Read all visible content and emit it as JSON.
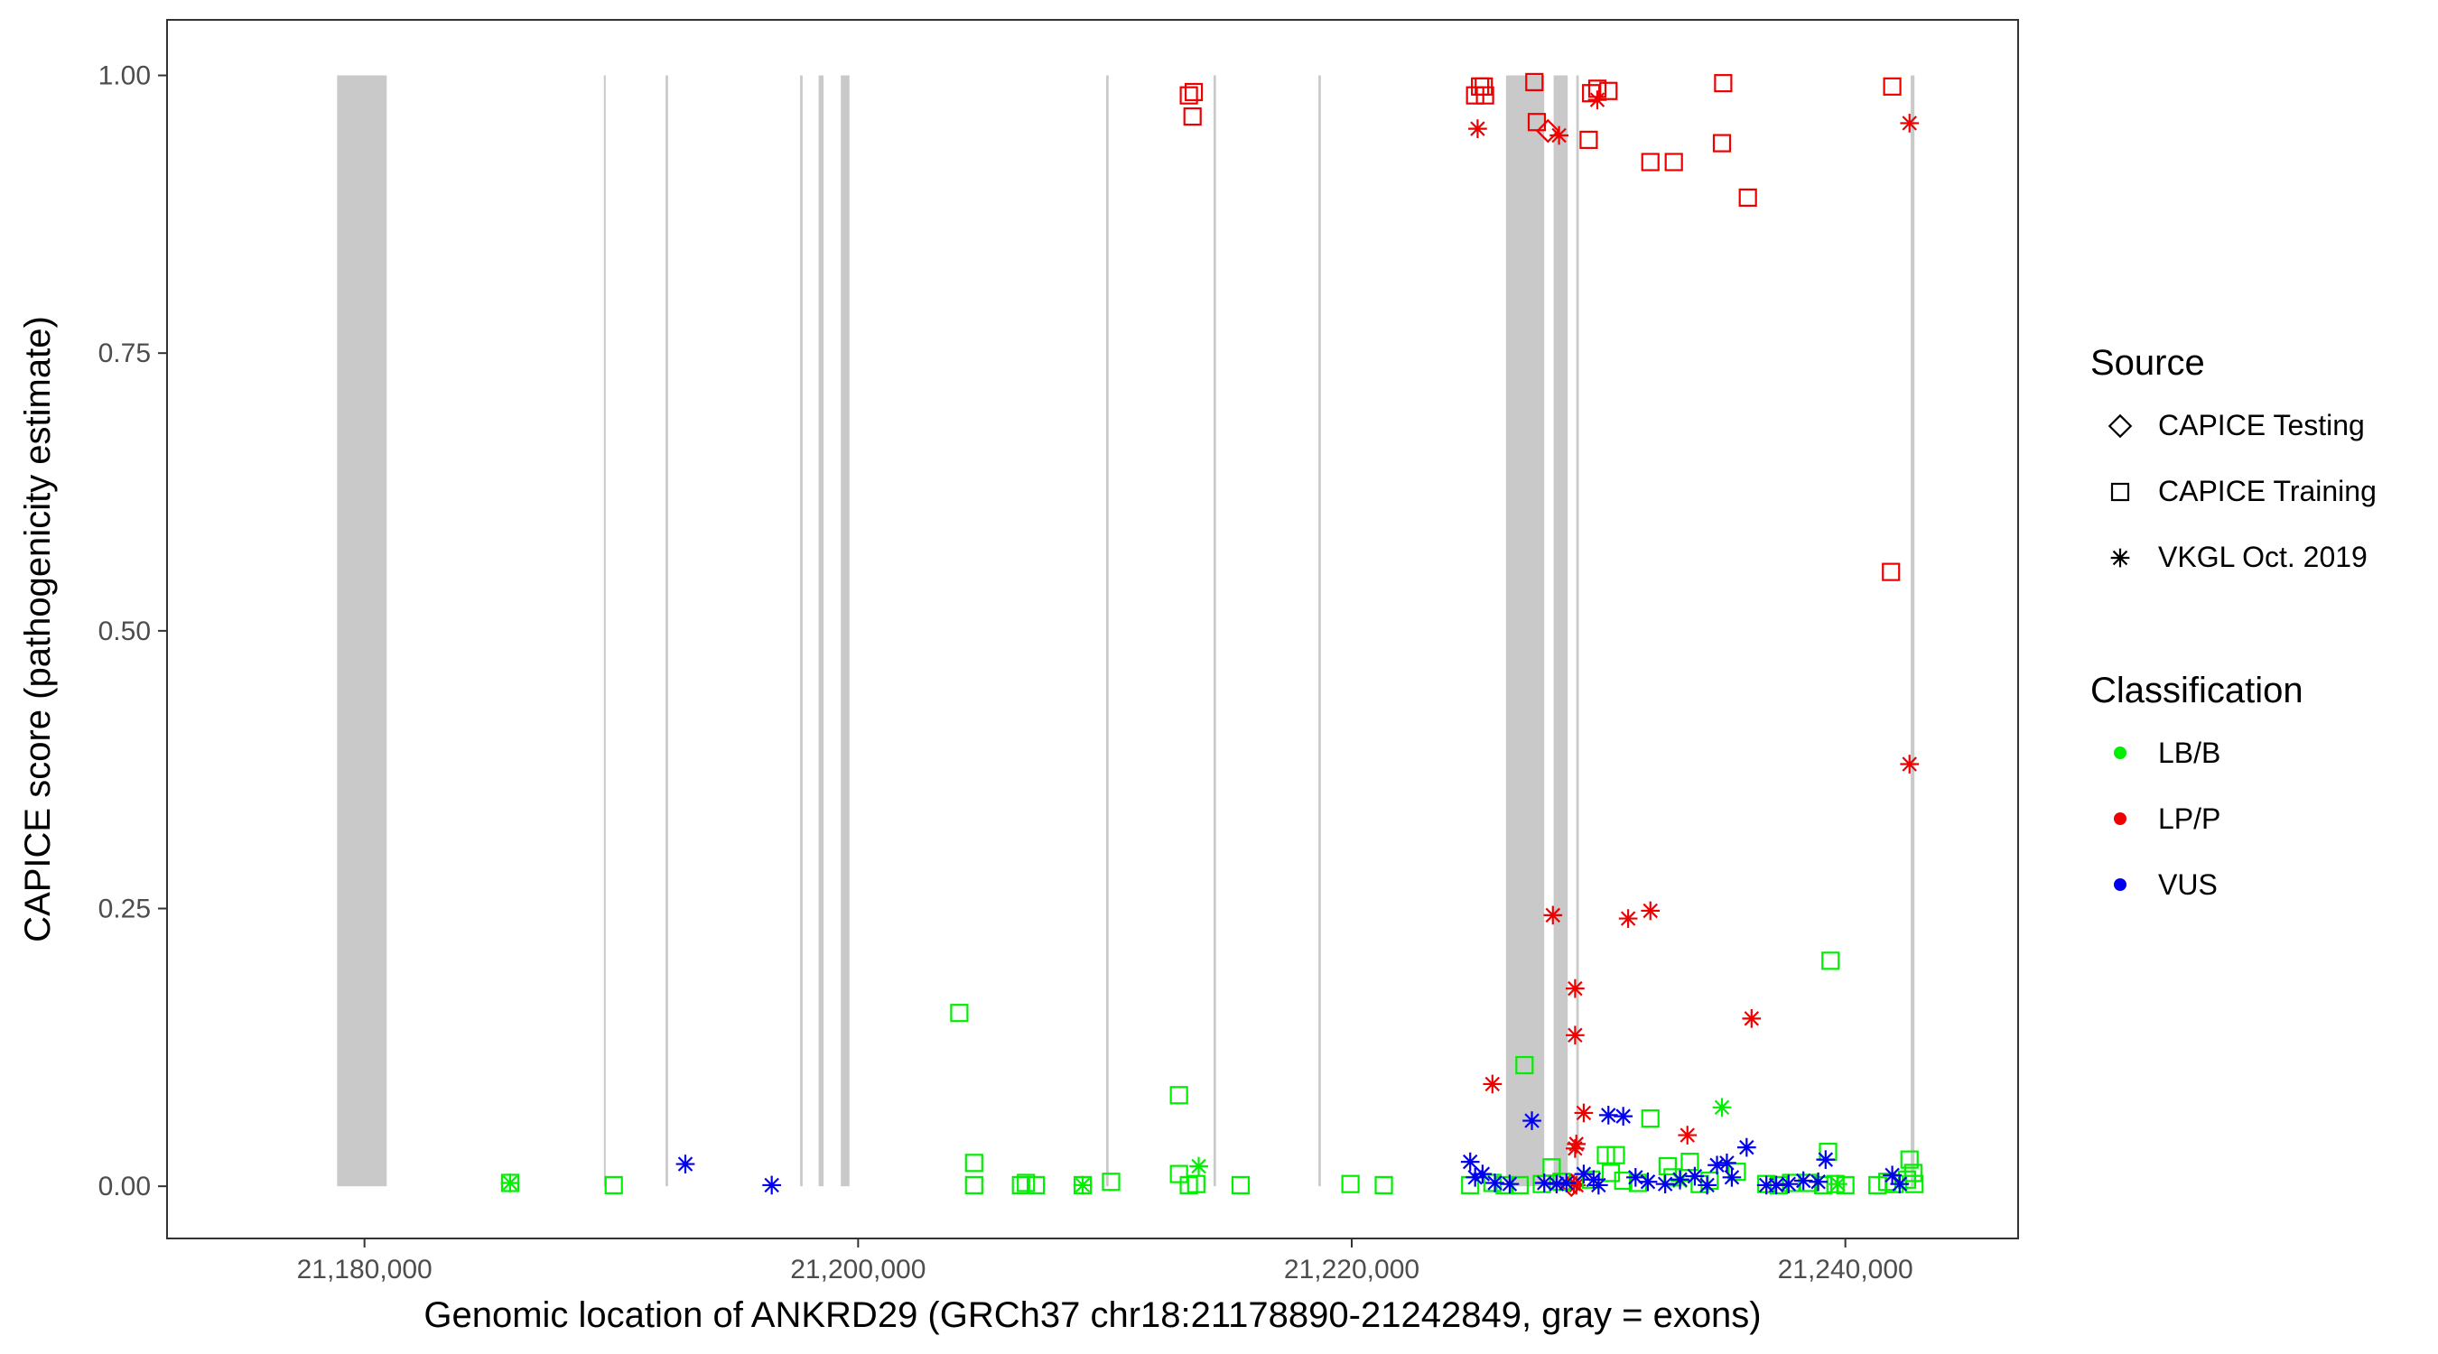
{
  "chart_data": {
    "type": "scatter",
    "xlabel": "Genomic location of ANKRD29 (GRCh37 chr18:21178890-21242849, gray = exons)",
    "ylabel": "CAPICE score (pathogenicity estimate)",
    "xlim": [
      21172000,
      21247000
    ],
    "ylim": [
      -0.047,
      1.05
    ],
    "x_ticks": [
      21180000,
      21200000,
      21220000,
      21240000
    ],
    "x_tick_labels": [
      "21,180,000",
      "21,200,000",
      "21,220,000",
      "21,240,000"
    ],
    "y_ticks": [
      0,
      0.25,
      0.5,
      0.75,
      1.0
    ],
    "y_tick_labels": [
      "0.00",
      "0.25",
      "0.50",
      "0.75",
      "1.00"
    ],
    "grid": false,
    "exons": [
      [
        21178890,
        21180900
      ],
      [
        21189700,
        21189760
      ],
      [
        21192200,
        21192300
      ],
      [
        21197650,
        21197750
      ],
      [
        21198400,
        21198600
      ],
      [
        21199300,
        21199650
      ],
      [
        21210050,
        21210150
      ],
      [
        21214400,
        21214500
      ],
      [
        21218650,
        21218750
      ],
      [
        21226250,
        21227800
      ],
      [
        21228180,
        21228750
      ],
      [
        21229100,
        21229200
      ],
      [
        21242650,
        21242800
      ]
    ],
    "legend_placement": "right",
    "legends": [
      {
        "title": "Source",
        "items": [
          {
            "label": "CAPICE Testing",
            "shape": "diamond"
          },
          {
            "label": "CAPICE Training",
            "shape": "square"
          },
          {
            "label": "VKGL Oct. 2019",
            "shape": "asterisk"
          }
        ]
      },
      {
        "title": "Classification",
        "items": [
          {
            "label": "LB/B",
            "color": "#00ee00"
          },
          {
            "label": "LP/P",
            "color": "#ee0000"
          },
          {
            "label": "VUS",
            "color": "#0000ee"
          }
        ]
      }
    ],
    "series": [
      {
        "source": "CAPICE Training",
        "classification": "LP/P",
        "color": "#ee0000",
        "shape": "square",
        "points": [
          [
            21213400,
            0.982
          ],
          [
            21213600,
            0.985
          ],
          [
            21213550,
            0.963
          ],
          [
            21225000,
            0.982
          ],
          [
            21225200,
            0.99
          ],
          [
            21225350,
            0.99
          ],
          [
            21225400,
            0.982
          ],
          [
            21227400,
            0.994
          ],
          [
            21227500,
            0.958
          ],
          [
            21229700,
            0.984
          ],
          [
            21229950,
            0.988
          ],
          [
            21230400,
            0.986
          ],
          [
            21229600,
            0.942
          ],
          [
            21232100,
            0.922
          ],
          [
            21233050,
            0.922
          ],
          [
            21235000,
            0.939
          ],
          [
            21235050,
            0.993
          ],
          [
            21236050,
            0.89
          ],
          [
            21241900,
            0.99
          ],
          [
            21241850,
            0.553
          ]
        ]
      },
      {
        "source": "VKGL Oct. 2019",
        "classification": "LP/P",
        "color": "#ee0000",
        "shape": "asterisk",
        "points": [
          [
            21225100,
            0.952
          ],
          [
            21228400,
            0.946
          ],
          [
            21229950,
            0.978
          ],
          [
            21242600,
            0.957
          ],
          [
            21242600,
            0.38
          ],
          [
            21228150,
            0.244
          ],
          [
            21231200,
            0.241
          ],
          [
            21232100,
            0.248
          ],
          [
            21229050,
            0.178
          ],
          [
            21229050,
            0.136
          ],
          [
            21236200,
            0.151
          ],
          [
            21225700,
            0.092
          ],
          [
            21229400,
            0.066
          ],
          [
            21229100,
            0.038
          ],
          [
            21229050,
            0.034
          ],
          [
            21233600,
            0.046
          ],
          [
            21229000,
            0.002
          ],
          [
            21229100,
            0.001
          ]
        ]
      },
      {
        "source": "CAPICE Testing",
        "classification": "LP/P",
        "color": "#ee0000",
        "shape": "diamond",
        "points": [
          [
            21227950,
            0.95
          ],
          [
            21228900,
            0.001
          ]
        ]
      },
      {
        "source": "CAPICE Training",
        "classification": "LB/B",
        "color": "#00ee00",
        "shape": "square",
        "points": [
          [
            21185900,
            0.003
          ],
          [
            21190100,
            0.001
          ],
          [
            21204100,
            0.156
          ],
          [
            21204700,
            0.021
          ],
          [
            21204700,
            0.001
          ],
          [
            21206600,
            0.001
          ],
          [
            21206800,
            0.003
          ],
          [
            21207200,
            0.001
          ],
          [
            21209100,
            0.001
          ],
          [
            21210250,
            0.004
          ],
          [
            21213000,
            0.082
          ],
          [
            21213000,
            0.011
          ],
          [
            21213400,
            0.001
          ],
          [
            21213700,
            0.002
          ],
          [
            21215500,
            0.001
          ],
          [
            21219950,
            0.002
          ],
          [
            21221300,
            0.001
          ],
          [
            21224800,
            0.001
          ],
          [
            21225700,
            0.003
          ],
          [
            21226200,
            0.001
          ],
          [
            21227000,
            0.109
          ],
          [
            21226800,
            0.001
          ],
          [
            21227700,
            0.002
          ],
          [
            21228100,
            0.017
          ],
          [
            21228500,
            0.004
          ],
          [
            21229700,
            0.006
          ],
          [
            21230300,
            0.028
          ],
          [
            21230700,
            0.028
          ],
          [
            21231600,
            0.003
          ],
          [
            21232100,
            0.061
          ],
          [
            21232800,
            0.018
          ],
          [
            21233700,
            0.022
          ],
          [
            21234100,
            0.002
          ],
          [
            21234500,
            0.005
          ],
          [
            21235600,
            0.013
          ],
          [
            21236800,
            0.002
          ],
          [
            21237300,
            0.001
          ],
          [
            21237800,
            0.003
          ],
          [
            21238500,
            0.003
          ],
          [
            21239100,
            0.001
          ],
          [
            21239400,
            0.203
          ],
          [
            21239300,
            0.031
          ],
          [
            21239600,
            0.002
          ],
          [
            21240000,
            0.001
          ],
          [
            21241300,
            0.001
          ],
          [
            21241700,
            0.004
          ],
          [
            21242000,
            0.002
          ],
          [
            21242500,
            0.006
          ],
          [
            21242600,
            0.024
          ],
          [
            21242750,
            0.012
          ],
          [
            21242800,
            0.002
          ],
          [
            21230500,
            0.012
          ],
          [
            21231000,
            0.005
          ],
          [
            21233000,
            0.008
          ]
        ]
      },
      {
        "source": "VKGL Oct. 2019",
        "classification": "LB/B",
        "color": "#00ee00",
        "shape": "asterisk",
        "points": [
          [
            21185900,
            0.003
          ],
          [
            21209100,
            0.001
          ],
          [
            21213800,
            0.018
          ],
          [
            21235000,
            0.071
          ],
          [
            21233300,
            0.005
          ],
          [
            21239700,
            0.002
          ]
        ]
      },
      {
        "source": "VKGL Oct. 2019",
        "classification": "VUS",
        "color": "#0000ee",
        "shape": "asterisk",
        "points": [
          [
            21193000,
            0.02
          ],
          [
            21196500,
            0.001
          ],
          [
            21224800,
            0.022
          ],
          [
            21225000,
            0.008
          ],
          [
            21225300,
            0.011
          ],
          [
            21225800,
            0.003
          ],
          [
            21227300,
            0.059
          ],
          [
            21227800,
            0.003
          ],
          [
            21228300,
            0.002
          ],
          [
            21228700,
            0.003
          ],
          [
            21229400,
            0.011
          ],
          [
            21229800,
            0.006
          ],
          [
            21230400,
            0.064
          ],
          [
            21231000,
            0.063
          ],
          [
            21231500,
            0.008
          ],
          [
            21232000,
            0.004
          ],
          [
            21232700,
            0.002
          ],
          [
            21233300,
            0.006
          ],
          [
            21233900,
            0.009
          ],
          [
            21234400,
            0.001
          ],
          [
            21234800,
            0.019
          ],
          [
            21235200,
            0.021
          ],
          [
            21235400,
            0.008
          ],
          [
            21236000,
            0.035
          ],
          [
            21236800,
            0.001
          ],
          [
            21237700,
            0.002
          ],
          [
            21238300,
            0.005
          ],
          [
            21238900,
            0.004
          ],
          [
            21239200,
            0.024
          ],
          [
            21241900,
            0.01
          ],
          [
            21242200,
            0.002
          ],
          [
            21226400,
            0.002
          ],
          [
            21230000,
            0.001
          ],
          [
            21237200,
            0.001
          ]
        ]
      }
    ]
  }
}
